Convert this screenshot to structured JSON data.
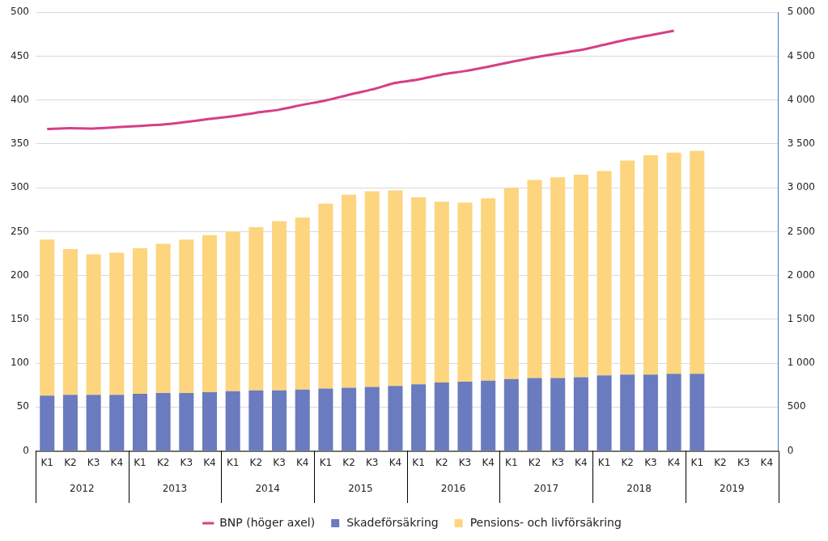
{
  "chart_data": {
    "type": "bar",
    "stacked": true,
    "grid": true,
    "legend": "bottom",
    "categories": [
      "K1",
      "K2",
      "K3",
      "K4",
      "K1",
      "K2",
      "K3",
      "K4",
      "K1",
      "K2",
      "K3",
      "K4",
      "K1",
      "K2",
      "K3",
      "K4",
      "K1",
      "K2",
      "K3",
      "K4",
      "K1",
      "K2",
      "K3",
      "K4",
      "K1",
      "K2",
      "K3",
      "K4",
      "K1",
      "K2",
      "K3",
      "K4"
    ],
    "x_groups": [
      "2012",
      "2013",
      "2014",
      "2015",
      "2016",
      "2017",
      "2018",
      "2019"
    ],
    "ylim": [
      0,
      500
    ],
    "yticks": [
      0,
      50,
      100,
      150,
      200,
      250,
      300,
      350,
      400,
      450,
      500
    ],
    "y2lim": [
      0,
      5000
    ],
    "y2ticks": [
      0,
      500,
      {
        "value": 1000,
        "label": "1 000"
      },
      {
        "value": 1500,
        "label": "1 500"
      },
      {
        "value": 2000,
        "label": "2 000"
      },
      {
        "value": 2500,
        "label": "2 500"
      },
      {
        "value": 3000,
        "label": "3 000"
      },
      {
        "value": 3500,
        "label": "3 500"
      },
      {
        "value": 4000,
        "label": "4 000"
      },
      {
        "value": 4500,
        "label": "4 500"
      },
      {
        "value": 5000,
        "label": "5 000"
      }
    ],
    "series": [
      {
        "name": "Skadeförsäkring",
        "type": "bar",
        "color": "#6a7bbf",
        "values": [
          63,
          64,
          64,
          64,
          65,
          66,
          66,
          67,
          68,
          69,
          69,
          70,
          71,
          72,
          73,
          74,
          76,
          78,
          79,
          80,
          82,
          83,
          83,
          84,
          86,
          87,
          87,
          88,
          88,
          null,
          null,
          null
        ]
      },
      {
        "name": "Pensions- och livförsäkring",
        "type": "bar",
        "color": "#fdd57e",
        "values": [
          178,
          166,
          160,
          162,
          166,
          170,
          175,
          179,
          182,
          186,
          193,
          196,
          211,
          220,
          223,
          223,
          213,
          206,
          204,
          208,
          218,
          226,
          229,
          231,
          233,
          244,
          250,
          252,
          254,
          null,
          null,
          null
        ]
      },
      {
        "name": "BNP (höger axel)",
        "type": "line",
        "axis": "y2",
        "color": "#d63f87",
        "values": [
          3670,
          3680,
          3675,
          3690,
          3705,
          3720,
          3750,
          3785,
          3815,
          3855,
          3890,
          3945,
          3995,
          4060,
          4120,
          4195,
          4235,
          4290,
          4330,
          4380,
          4435,
          4485,
          4530,
          4570,
          4630,
          4690,
          4740,
          4790,
          null,
          null,
          null,
          null
        ]
      }
    ]
  }
}
